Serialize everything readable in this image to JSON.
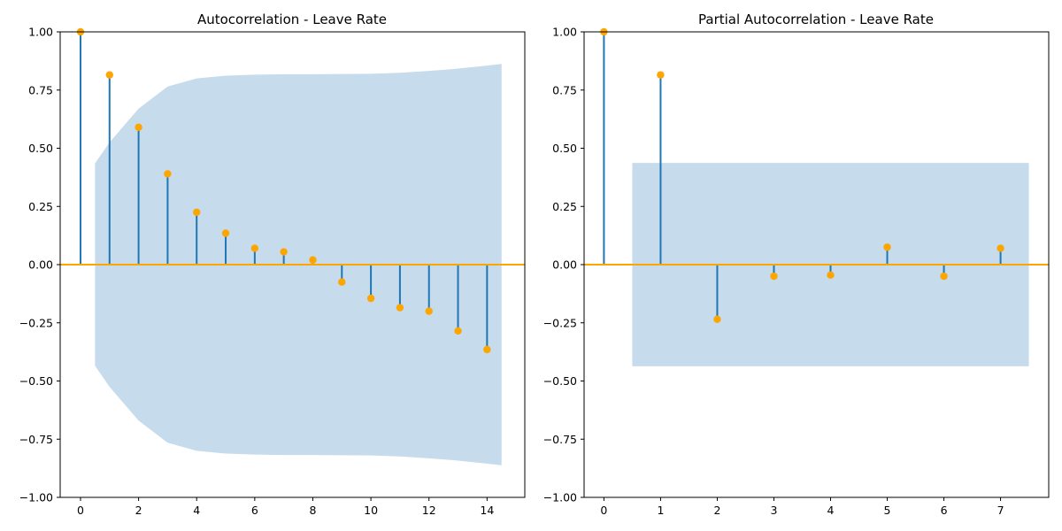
{
  "chart_data": [
    {
      "type": "stem",
      "title": "Autocorrelation - Leave Rate",
      "xlabel": "",
      "ylabel": "",
      "xlim": [
        -0.7,
        15.3
      ],
      "ylim": [
        -1.0,
        1.0
      ],
      "xticks": [
        0,
        2,
        4,
        6,
        8,
        10,
        12,
        14
      ],
      "yticks": [
        -1.0,
        -0.75,
        -0.5,
        -0.25,
        0.0,
        0.25,
        0.5,
        0.75,
        1.0
      ],
      "ytick_labels": [
        "−1.00",
        "−0.75",
        "−0.50",
        "−0.25",
        "0.00",
        "0.25",
        "0.50",
        "0.75",
        "1.00"
      ],
      "grid": false,
      "lags": [
        0,
        1,
        2,
        3,
        4,
        5,
        6,
        7,
        8,
        9,
        10,
        11,
        12,
        13,
        14
      ],
      "values": [
        1.0,
        0.815,
        0.59,
        0.39,
        0.225,
        0.135,
        0.07,
        0.055,
        0.02,
        -0.075,
        -0.145,
        -0.185,
        -0.2,
        -0.285,
        -0.365
      ],
      "confidence_band": {
        "x": [
          0.5,
          1,
          2,
          3,
          4,
          5,
          6,
          7,
          8,
          9,
          10,
          11,
          12,
          13,
          14,
          14.5
        ],
        "upper": [
          0.435,
          0.525,
          0.67,
          0.765,
          0.8,
          0.812,
          0.816,
          0.818,
          0.818,
          0.819,
          0.82,
          0.824,
          0.832,
          0.842,
          0.855,
          0.862
        ],
        "color": "#c6dbec"
      },
      "stem_color": "#1f77b4",
      "marker_color": "#ffa500",
      "zero_line_color": "#ffa500"
    },
    {
      "type": "stem",
      "title": "Partial Autocorrelation - Leave Rate",
      "xlabel": "",
      "ylabel": "",
      "xlim": [
        -0.35,
        7.85
      ],
      "ylim": [
        -1.0,
        1.0
      ],
      "xticks": [
        0,
        1,
        2,
        3,
        4,
        5,
        6,
        7
      ],
      "yticks": [
        -1.0,
        -0.75,
        -0.5,
        -0.25,
        0.0,
        0.25,
        0.5,
        0.75,
        1.0
      ],
      "ytick_labels": [
        "−1.00",
        "−0.75",
        "−0.50",
        "−0.25",
        "0.00",
        "0.25",
        "0.50",
        "0.75",
        "1.00"
      ],
      "grid": false,
      "lags": [
        0,
        1,
        2,
        3,
        4,
        5,
        6,
        7
      ],
      "values": [
        1.0,
        0.815,
        -0.235,
        -0.05,
        -0.045,
        0.075,
        -0.05,
        0.07
      ],
      "confidence_band": {
        "x": [
          0.5,
          7.5
        ],
        "upper": [
          0.437,
          0.437
        ],
        "color": "#c6dbec"
      },
      "stem_color": "#1f77b4",
      "marker_color": "#ffa500",
      "zero_line_color": "#ffa500"
    }
  ]
}
